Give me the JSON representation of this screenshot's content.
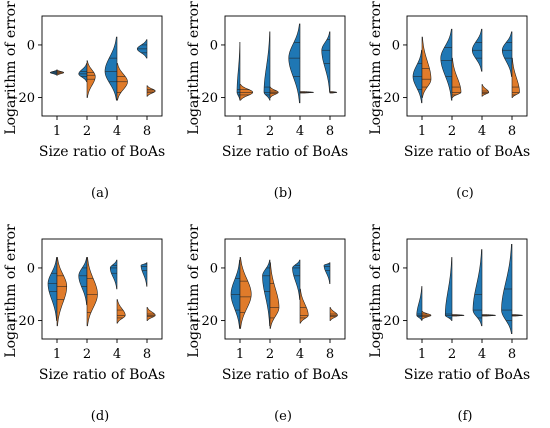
{
  "figure": {
    "background": "#ffffff"
  },
  "colors": {
    "left_half": "#1f77b4",
    "right_half": "#e07b2a",
    "edge": "#222222"
  },
  "chart_data": [
    {
      "panel": "(a)",
      "type": "violin",
      "split": true,
      "xlabel": "Size ratio of BoAs",
      "ylabel": "Logarithm of error",
      "categories": [
        "1",
        "2",
        "4",
        "8"
      ],
      "yticks": [
        0,
        -20
      ],
      "ylim": [
        -27,
        11
      ],
      "violins": [
        {
          "left": {
            "min": -11.5,
            "max": -9.5,
            "peak": -10.5,
            "width": 0.45,
            "quartiles": [
              -10.9,
              -10.5,
              -10.1
            ]
          },
          "right": {
            "min": -11.5,
            "max": -9.5,
            "peak": -10.5,
            "width": 0.45,
            "quartiles": [
              -10.9,
              -10.5,
              -10.1
            ]
          }
        },
        {
          "left": {
            "min": -14,
            "max": -7,
            "peak": -11,
            "width": 0.55,
            "quartiles": [
              -12,
              -11,
              -10
            ]
          },
          "right": {
            "min": -20,
            "max": -6,
            "peak": -12,
            "width": 0.55,
            "quartiles": [
              -13,
              -11.5,
              -10.5
            ]
          }
        },
        {
          "left": {
            "min": -21,
            "max": 3,
            "peak": -10,
            "width": 0.8,
            "quartiles": [
              -14,
              -10,
              -5
            ]
          },
          "right": {
            "min": -21,
            "max": -7,
            "peak": -14,
            "width": 0.7,
            "quartiles": [
              -18,
              -14,
              -12
            ]
          }
        },
        {
          "left": {
            "min": -5,
            "max": 2,
            "peak": -1.5,
            "width": 0.65,
            "quartiles": [
              -3,
              -1.5,
              0
            ]
          },
          "right": {
            "min": -19.5,
            "max": -15.5,
            "peak": -17.5,
            "width": 0.55,
            "quartiles": [
              -18,
              -17.5,
              -17
            ]
          }
        }
      ]
    },
    {
      "panel": "(b)",
      "type": "violin",
      "split": true,
      "xlabel": "Size ratio of BoAs",
      "ylabel": "Logarithm of error",
      "categories": [
        "1",
        "2",
        "4",
        "8"
      ],
      "yticks": [
        0,
        -20
      ],
      "ylim": [
        -27,
        11
      ],
      "violins": [
        {
          "left": {
            "min": -21,
            "max": 1,
            "peak": -18,
            "width": 0.2,
            "quartiles": [
              -19,
              -18,
              -17
            ]
          },
          "right": {
            "min": -21,
            "max": -15,
            "peak": -18,
            "width": 0.85,
            "quartiles": [
              -19,
              -18,
              -17
            ]
          }
        },
        {
          "left": {
            "min": -21,
            "max": 5,
            "peak": -18,
            "width": 0.4,
            "quartiles": [
              -19,
              -18,
              -16
            ]
          },
          "right": {
            "min": -20,
            "max": -16,
            "peak": -18,
            "width": 0.55,
            "quartiles": [
              -18.5,
              -18,
              -17.5
            ]
          }
        },
        {
          "left": {
            "min": -22,
            "max": 8,
            "peak": -5,
            "width": 0.75,
            "quartiles": [
              -12,
              -5,
              1
            ]
          },
          "right": {
            "min": -18.3,
            "max": -17.7,
            "peak": -18,
            "width": 0.9,
            "quartiles": [
              -18,
              -18,
              -18
            ]
          }
        },
        {
          "left": {
            "min": -18,
            "max": 5,
            "peak": -2,
            "width": 0.55,
            "quartiles": [
              -7,
              -2,
              2
            ]
          },
          "right": {
            "min": -18.3,
            "max": -17.7,
            "peak": -18,
            "width": 0.45,
            "quartiles": [
              -18,
              -18,
              -18
            ]
          }
        }
      ]
    },
    {
      "panel": "(c)",
      "type": "violin",
      "split": true,
      "xlabel": "Size ratio of BoAs",
      "ylabel": "Logarithm of error",
      "categories": [
        "1",
        "2",
        "4",
        "8"
      ],
      "yticks": [
        0,
        -20
      ],
      "ylim": [
        -27,
        11
      ],
      "violins": [
        {
          "left": {
            "min": -22,
            "max": -2,
            "peak": -12,
            "width": 0.6,
            "quartiles": [
              -17,
              -12,
              -7
            ]
          },
          "right": {
            "min": -20,
            "max": 3,
            "peak": -13,
            "width": 0.6,
            "quartiles": [
              -16,
              -13,
              -9
            ]
          }
        },
        {
          "left": {
            "min": -21,
            "max": 6,
            "peak": -5,
            "width": 0.75,
            "quartiles": [
              -12,
              -6,
              -1
            ]
          },
          "right": {
            "min": -20,
            "max": -5,
            "peak": -18,
            "width": 0.6,
            "quartiles": [
              -19,
              -18,
              -16
            ]
          }
        },
        {
          "left": {
            "min": -10,
            "max": 6,
            "peak": -2,
            "width": 0.65,
            "quartiles": [
              -5,
              -2,
              1
            ]
          },
          "right": {
            "min": -19.5,
            "max": -15,
            "peak": -18,
            "width": 0.45,
            "quartiles": [
              -18.5,
              -18,
              -17.5
            ]
          }
        },
        {
          "left": {
            "min": -12,
            "max": 5,
            "peak": -2,
            "width": 0.65,
            "quartiles": [
              -5,
              -2,
              1
            ]
          },
          "right": {
            "min": -20,
            "max": -5,
            "peak": -18,
            "width": 0.5,
            "quartiles": [
              -19,
              -18,
              -16
            ]
          }
        }
      ]
    },
    {
      "panel": "(d)",
      "type": "violin",
      "split": true,
      "xlabel": "Size ratio of BoAs",
      "ylabel": "Logarithm of error",
      "categories": [
        "1",
        "2",
        "4",
        "8"
      ],
      "yticks": [
        0,
        -20
      ],
      "ylim": [
        -27,
        11
      ],
      "violins": [
        {
          "left": {
            "min": -20,
            "max": 4,
            "peak": -6,
            "width": 0.6,
            "quartiles": [
              -9,
              -6,
              -2
            ]
          },
          "right": {
            "min": -22,
            "max": 4,
            "peak": -7,
            "width": 0.65,
            "quartiles": [
              -12,
              -7,
              -3
            ]
          }
        },
        {
          "left": {
            "min": -14,
            "max": 4,
            "peak": -3,
            "width": 0.55,
            "quartiles": [
              -7,
              -3,
              0
            ]
          },
          "right": {
            "min": -22,
            "max": 4,
            "peak": -10,
            "width": 0.7,
            "quartiles": [
              -17,
              -10,
              -4
            ]
          }
        },
        {
          "left": {
            "min": -8,
            "max": 3,
            "peak": 0,
            "width": 0.45,
            "quartiles": [
              -2,
              0,
              1
            ]
          },
          "right": {
            "min": -21,
            "max": -12,
            "peak": -18,
            "width": 0.55,
            "quartiles": [
              -19,
              -18,
              -16
            ]
          }
        },
        {
          "left": {
            "min": -7,
            "max": 2,
            "peak": 1,
            "width": 0.4,
            "quartiles": [
              -1,
              0.5,
              1.5
            ]
          },
          "right": {
            "min": -20,
            "max": -15,
            "peak": -18,
            "width": 0.55,
            "quartiles": [
              -18.5,
              -18,
              -17.5
            ]
          }
        }
      ]
    },
    {
      "panel": "(e)",
      "type": "violin",
      "split": true,
      "xlabel": "Size ratio of BoAs",
      "ylabel": "Logarithm of error",
      "categories": [
        "1",
        "2",
        "4",
        "8"
      ],
      "yticks": [
        0,
        -20
      ],
      "ylim": [
        -27,
        11
      ],
      "violins": [
        {
          "left": {
            "min": -23,
            "max": 3,
            "peak": -10,
            "width": 0.6,
            "quartiles": [
              -16,
              -10,
              -4
            ]
          },
          "right": {
            "min": -23,
            "max": 4,
            "peak": -10,
            "width": 0.75,
            "quartiles": [
              -17,
              -11,
              -5
            ]
          }
        },
        {
          "left": {
            "min": -22,
            "max": 3,
            "peak": -3,
            "width": 0.5,
            "quartiles": [
              -9,
              -3,
              0
            ]
          },
          "right": {
            "min": -23,
            "max": 2,
            "peak": -15,
            "width": 0.6,
            "quartiles": [
              -19,
              -15,
              -6
            ]
          }
        },
        {
          "left": {
            "min": -12,
            "max": 3,
            "peak": 0,
            "width": 0.5,
            "quartiles": [
              -3,
              0,
              1
            ]
          },
          "right": {
            "min": -21,
            "max": -8,
            "peak": -18,
            "width": 0.55,
            "quartiles": [
              -19,
              -18,
              -15
            ]
          }
        },
        {
          "left": {
            "min": -6,
            "max": 2,
            "peak": 1,
            "width": 0.4,
            "quartiles": [
              -1,
              0.5,
              1.5
            ]
          },
          "right": {
            "min": -20,
            "max": -15,
            "peak": -18,
            "width": 0.5,
            "quartiles": [
              -18.5,
              -18,
              -17.5
            ]
          }
        }
      ]
    },
    {
      "panel": "(f)",
      "type": "violin",
      "split": true,
      "xlabel": "Size ratio of BoAs",
      "ylabel": "Logarithm of error",
      "categories": [
        "1",
        "2",
        "4",
        "8"
      ],
      "yticks": [
        0,
        -20
      ],
      "ylim": [
        -27,
        11
      ],
      "violins": [
        {
          "left": {
            "min": -20,
            "max": -7,
            "peak": -18,
            "width": 0.35,
            "quartiles": [
              -18.5,
              -18,
              -17.5
            ]
          },
          "right": {
            "min": -19.5,
            "max": -16.5,
            "peak": -18,
            "width": 0.6,
            "quartiles": [
              -18.5,
              -18,
              -17.5
            ]
          }
        },
        {
          "left": {
            "min": -20,
            "max": 4,
            "peak": -18,
            "width": 0.45,
            "quartiles": [
              -19,
              -18,
              -17.5
            ]
          },
          "right": {
            "min": -18.3,
            "max": -17.7,
            "peak": -18,
            "width": 0.8,
            "quartiles": [
              -18,
              -18,
              -18
            ]
          }
        },
        {
          "left": {
            "min": -22,
            "max": 7,
            "peak": -16,
            "width": 0.6,
            "quartiles": [
              -19,
              -16,
              -10
            ]
          },
          "right": {
            "min": -18.3,
            "max": -17.7,
            "peak": -18,
            "width": 0.9,
            "quartiles": [
              -18,
              -18,
              -18
            ]
          }
        },
        {
          "left": {
            "min": -25,
            "max": 9,
            "peak": -16,
            "width": 0.7,
            "quartiles": [
              -20,
              -16,
              -8
            ]
          },
          "right": {
            "min": -18.3,
            "max": -17.7,
            "peak": -18,
            "width": 0.7,
            "quartiles": [
              -18,
              -18,
              -18
            ]
          }
        }
      ]
    }
  ]
}
